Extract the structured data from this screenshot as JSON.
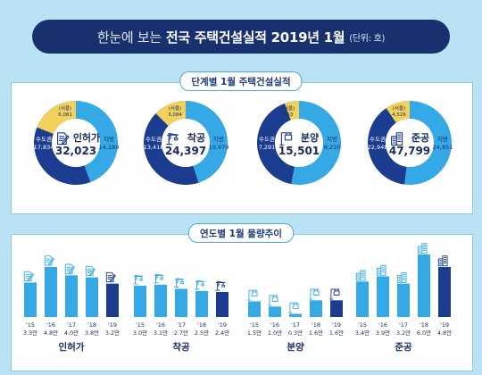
{
  "header": {
    "title_light": "한눈에 보는",
    "title_bold": "전국 주택건설실적 2019년 1월",
    "unit": "(단위: 호)"
  },
  "section1": {
    "title": "단계별 1월 주택건설실적"
  },
  "section2": {
    "title": "연도별 1월 물량추이"
  },
  "colors": {
    "capital": "#1c3d8f",
    "seoul": "#f2d15c",
    "local": "#35a9e6",
    "bar_past": "#35a9e6",
    "bar_current": "#1c3d8f"
  },
  "chart_data": [
    {
      "type": "pie",
      "name": "인허가",
      "total": "32,023",
      "icon": "document-pen-icon",
      "slices": [
        {
          "label": "지방",
          "value": 14189,
          "display": "14,189"
        },
        {
          "label": "수도권",
          "value": 17834,
          "display": "17,834"
        }
      ],
      "seoul": {
        "label": "(서울)",
        "value": 6081,
        "display": "6,081"
      }
    },
    {
      "type": "pie",
      "name": "착공",
      "total": "24,397",
      "icon": "crane-icon",
      "slices": [
        {
          "label": "지방",
          "value": 10979,
          "display": "10,979"
        },
        {
          "label": "수도권",
          "value": 13418,
          "display": "13,418"
        }
      ],
      "seoul": {
        "label": "(서울)",
        "value": 3084,
        "display": "3,084"
      }
    },
    {
      "type": "pie",
      "name": "분양",
      "total": "15,501",
      "icon": "sale-sign-icon",
      "slices": [
        {
          "label": "지방",
          "value": 8210,
          "display": "8,210"
        },
        {
          "label": "수도권",
          "value": 7291,
          "display": "7,291"
        }
      ],
      "seoul": {
        "label": "(서울)",
        "value": 863,
        "display": "863"
      }
    },
    {
      "type": "pie",
      "name": "준공",
      "total": "47,799",
      "icon": "apartment-icon",
      "slices": [
        {
          "label": "지방",
          "value": 24851,
          "display": "24,851"
        },
        {
          "label": "수도권",
          "value": 22948,
          "display": "22,948"
        }
      ],
      "seoul": {
        "label": "(서울)",
        "value": 4526,
        "display": "4,526"
      }
    },
    {
      "type": "bar",
      "groups": [
        {
          "name": "인허가",
          "icon": "document-pen-icon",
          "categories": [
            "'15",
            "'16",
            "'17",
            "'18",
            "'19"
          ],
          "values": [
            3.3,
            4.8,
            4.0,
            3.8,
            3.2
          ],
          "labels": [
            "3.3만",
            "4.8만",
            "4.0만",
            "3.8만",
            "3.2만"
          ]
        },
        {
          "name": "착공",
          "icon": "crane-icon",
          "categories": [
            "'15",
            "'16",
            "'17",
            "'18",
            "'19"
          ],
          "values": [
            3.0,
            3.1,
            2.7,
            2.5,
            2.4
          ],
          "labels": [
            "3.0만",
            "3.1만",
            "2.7만",
            "2.5만",
            "2.4만"
          ]
        },
        {
          "name": "분양",
          "icon": "sale-sign-icon",
          "categories": [
            "'15",
            "'16",
            "'17",
            "'18",
            "'19"
          ],
          "values": [
            1.5,
            1.0,
            0.3,
            1.6,
            1.6
          ],
          "labels": [
            "1.5만",
            "1.0만",
            "0.3만",
            "1.6만",
            "1.6만"
          ]
        },
        {
          "name": "준공",
          "icon": "apartment-icon",
          "categories": [
            "'15",
            "'16",
            "'17",
            "'18",
            "'19"
          ],
          "values": [
            3.4,
            3.9,
            3.2,
            6.0,
            4.8
          ],
          "labels": [
            "3.4만",
            "3.9만",
            "3.2만",
            "6.0만",
            "4.8만"
          ]
        }
      ]
    }
  ]
}
